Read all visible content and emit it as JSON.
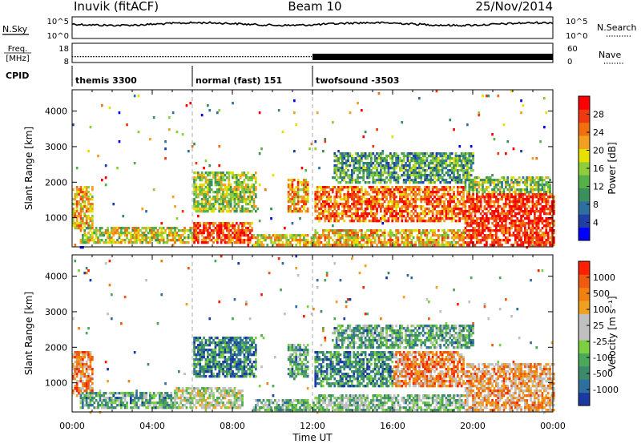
{
  "header": {
    "station": "Inuvik (fitACF)",
    "beam": "Beam 10",
    "date": "25/Nov/2014"
  },
  "top_panels": {
    "nsky": {
      "label": "N.Sky",
      "ticks": [
        "10^5",
        "10^0"
      ]
    },
    "nsearch": {
      "label": "N.Search",
      "ticks": [
        "10^5",
        "10^0"
      ],
      "style": "dotted"
    },
    "freq": {
      "label_line1": "Freq.",
      "label_line2": "[MHz]",
      "ticks": [
        "18",
        "8"
      ]
    },
    "nave": {
      "label": "Nave",
      "ticks": [
        "60",
        "0"
      ],
      "style": "dotted"
    },
    "cpid": {
      "label": "CPID",
      "segments": [
        {
          "name": "themis 3300",
          "start_hour": 0,
          "end_hour": 6
        },
        {
          "name": "normal (fast) 151",
          "start_hour": 6,
          "end_hour": 12
        },
        {
          "name": "twofsound -3503",
          "start_hour": 12,
          "end_hour": 24
        }
      ]
    }
  },
  "chart_data": [
    {
      "type": "heatmap",
      "name": "power",
      "title": "",
      "xlabel": "",
      "ylabel": "Slant Range [km]",
      "xlim": [
        0,
        24
      ],
      "ylim": [
        180,
        4600
      ],
      "y_ticks": [
        1000,
        2000,
        3000,
        4000
      ],
      "x_ticks": [
        0,
        4,
        8,
        12,
        16,
        20,
        24
      ],
      "colorbar": {
        "label": "Power [dB]",
        "tick_labels": [
          "28",
          "24",
          "20",
          "16",
          "12",
          "8",
          "4"
        ],
        "colors": [
          "#0000ff",
          "#1f3ea6",
          "#2f6f9f",
          "#3a8f5a",
          "#55b04a",
          "#8fce3a",
          "#e6e000",
          "#f2a020",
          "#f07010",
          "#ee3a10",
          "#ff0000"
        ]
      },
      "echo_regions": [
        {
          "x0": 0.0,
          "x1": 1.0,
          "y0": 700,
          "y1": 1950,
          "level": 0.65
        },
        {
          "x0": 0.3,
          "x1": 6.0,
          "y0": 320,
          "y1": 800,
          "level": 0.55
        },
        {
          "x0": 6.0,
          "x1": 9.0,
          "y0": 300,
          "y1": 900,
          "level": 0.85
        },
        {
          "x0": 6.0,
          "x1": 9.2,
          "y0": 1200,
          "y1": 2300,
          "level": 0.5
        },
        {
          "x0": 9.0,
          "x1": 12.0,
          "y0": 250,
          "y1": 600,
          "level": 0.6
        },
        {
          "x0": 10.7,
          "x1": 11.8,
          "y0": 1200,
          "y1": 2100,
          "level": 0.7
        },
        {
          "x0": 12.0,
          "x1": 19.5,
          "y0": 900,
          "y1": 1900,
          "level": 0.8
        },
        {
          "x0": 12.0,
          "x1": 20.0,
          "y0": 250,
          "y1": 700,
          "level": 0.65
        },
        {
          "x0": 13.0,
          "x1": 20.0,
          "y0": 2000,
          "y1": 2900,
          "level": 0.35
        },
        {
          "x0": 19.5,
          "x1": 24.0,
          "y0": 250,
          "y1": 1700,
          "level": 0.9
        },
        {
          "x0": 19.5,
          "x1": 23.9,
          "y0": 1700,
          "y1": 2200,
          "level": 0.45
        }
      ]
    },
    {
      "type": "heatmap",
      "name": "velocity",
      "title": "",
      "xlabel": "Time UT",
      "ylabel": "Slant Range [km]",
      "xlim": [
        0,
        24
      ],
      "ylim": [
        180,
        4600
      ],
      "y_ticks": [
        1000,
        2000,
        3000,
        4000
      ],
      "x_tick_labels": [
        "00:00",
        "04:00",
        "08:00",
        "12:00",
        "16:00",
        "20:00",
        "00:00"
      ],
      "colorbar": {
        "label": "Velocity [m s⁻¹]",
        "tick_labels": [
          "1000",
          "500",
          "100",
          "25",
          "-25",
          "-100",
          "-500",
          "-1000"
        ],
        "colors": [
          "#1a3aa0",
          "#2f6f9f",
          "#3d8a6a",
          "#4aa858",
          "#7ccf40",
          "#c0c0c0",
          "#c0c0c0",
          "#f0a020",
          "#f08010",
          "#ee5a10",
          "#ff2000"
        ]
      },
      "echo_regions": [
        {
          "x0": 0.0,
          "x1": 1.0,
          "y0": 700,
          "y1": 1950,
          "level": 0.75
        },
        {
          "x0": 0.3,
          "x1": 6.0,
          "y0": 320,
          "y1": 800,
          "level": 0.3
        },
        {
          "x0": 5.0,
          "x1": 8.5,
          "y0": 300,
          "y1": 900,
          "level": 0.5
        },
        {
          "x0": 6.0,
          "x1": 9.2,
          "y0": 1200,
          "y1": 2300,
          "level": 0.2
        },
        {
          "x0": 9.0,
          "x1": 12.0,
          "y0": 250,
          "y1": 600,
          "level": 0.35
        },
        {
          "x0": 10.7,
          "x1": 11.8,
          "y0": 1200,
          "y1": 2100,
          "level": 0.3
        },
        {
          "x0": 12.0,
          "x1": 16.0,
          "y0": 900,
          "y1": 1900,
          "level": 0.22
        },
        {
          "x0": 16.0,
          "x1": 19.5,
          "y0": 900,
          "y1": 1900,
          "level": 0.75
        },
        {
          "x0": 12.0,
          "x1": 20.0,
          "y0": 250,
          "y1": 700,
          "level": 0.4
        },
        {
          "x0": 13.0,
          "x1": 20.0,
          "y0": 2000,
          "y1": 2700,
          "level": 0.3
        },
        {
          "x0": 19.5,
          "x1": 24.0,
          "y0": 250,
          "y1": 1600,
          "level": 0.7
        }
      ]
    }
  ]
}
